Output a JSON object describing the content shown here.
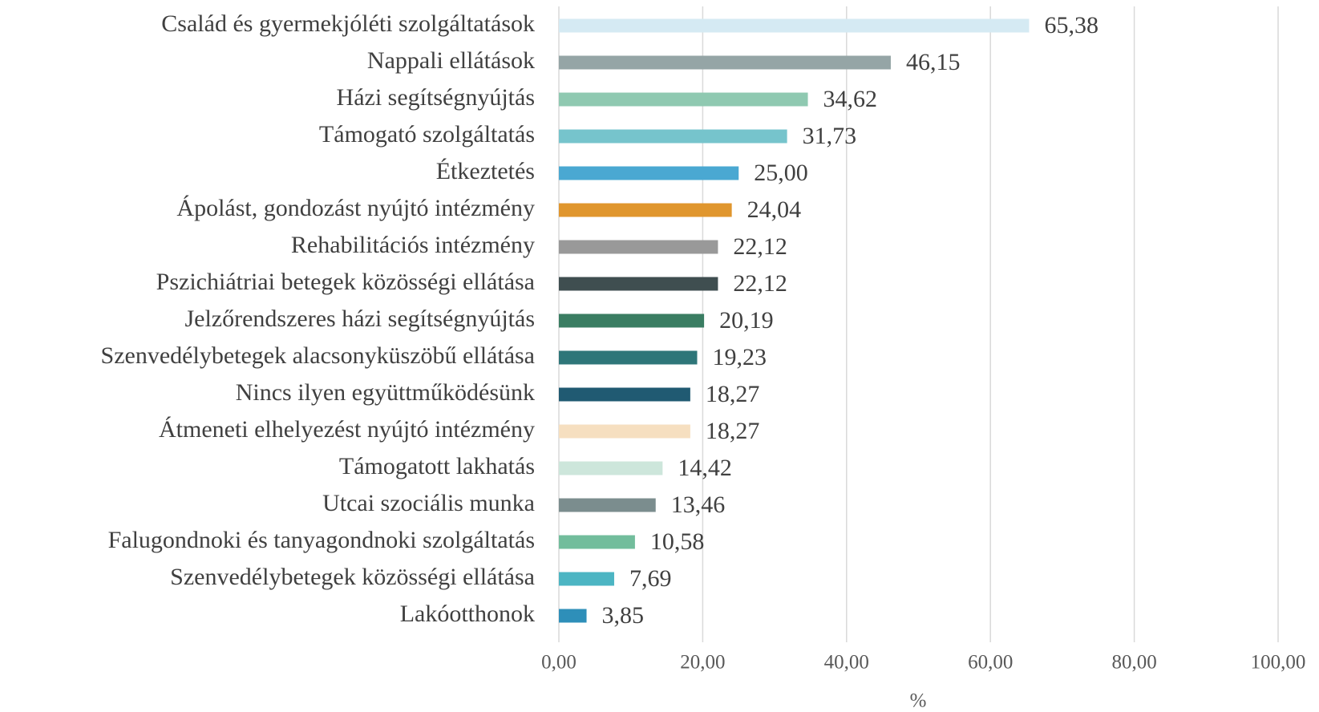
{
  "chart_data": {
    "type": "bar",
    "orientation": "horizontal",
    "categories": [
      "Család és gyermekjóléti szolgáltatások",
      "Nappali ellátások",
      "Házi segítségnyújtás",
      "Támogató szolgáltatás",
      "Étkeztetés",
      "Ápolást, gondozást nyújtó intézmény",
      "Rehabilitációs intézmény",
      "Pszichiátriai betegek közösségi ellátása",
      "Jelzőrendszeres házi segítségnyújtás",
      "Szenvedélybetegek alacsonyküszöbű ellátása",
      "Nincs ilyen együttműködésünk",
      "Átmeneti elhelyezést nyújtó intézmény",
      "Támogatott lakhatás",
      "Utcai szociális munka",
      "Falugondnoki és tanyagondnoki szolgáltatás",
      "Szenvedélybetegek közösségi ellátása",
      "Lakóotthonok"
    ],
    "values": [
      65.38,
      46.15,
      34.62,
      31.73,
      25.0,
      24.04,
      22.12,
      22.12,
      20.19,
      19.23,
      18.27,
      18.27,
      14.42,
      13.46,
      10.58,
      7.69,
      3.85
    ],
    "value_labels": [
      "65,38",
      "46,15",
      "34,62",
      "31,73",
      "25,00",
      "24,04",
      "22,12",
      "22,12",
      "20,19",
      "19,23",
      "18,27",
      "18,27",
      "14,42",
      "13,46",
      "10,58",
      "7,69",
      "3,85"
    ],
    "colors": [
      "#d5eaf3",
      "#95a5a6",
      "#8fc9b1",
      "#76c4cc",
      "#4aa8d2",
      "#e0962e",
      "#999999",
      "#3f4e50",
      "#3a7d62",
      "#2e7679",
      "#205a72",
      "#f6dfc0",
      "#cde6db",
      "#7b8d8e",
      "#72bd9c",
      "#4cb5c3",
      "#2e8fb9"
    ],
    "xlabel": "%",
    "xlim": [
      0,
      100
    ],
    "xticks": [
      {
        "value": 0,
        "label": "0,00"
      },
      {
        "value": 20,
        "label": "20,00"
      },
      {
        "value": 40,
        "label": "40,00"
      },
      {
        "value": 60,
        "label": "60,00"
      },
      {
        "value": 80,
        "label": "80,00"
      },
      {
        "value": 100,
        "label": "100,00"
      }
    ],
    "grid": true
  }
}
